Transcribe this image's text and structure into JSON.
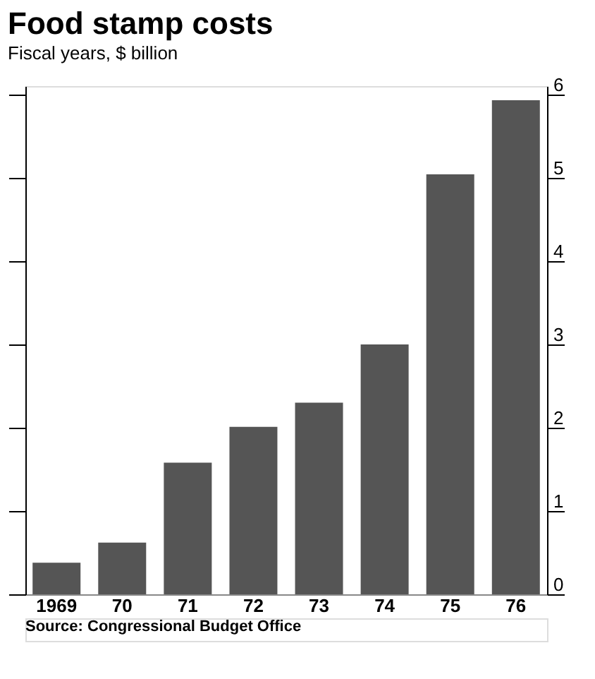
{
  "chart_data": {
    "type": "bar",
    "title": "Food stamp costs",
    "subtitle": "Fiscal years, $ billion",
    "categories": [
      "1969",
      "70",
      "71",
      "72",
      "73",
      "74",
      "75",
      "76"
    ],
    "values": [
      0.38,
      0.62,
      1.58,
      2.01,
      2.3,
      3.0,
      5.04,
      5.93
    ],
    "color": "#555555",
    "ylim": [
      0,
      6.1
    ],
    "yticks": [
      0,
      1,
      2,
      3,
      4,
      5,
      6
    ],
    "grid": false,
    "annotations": [
      "Source: Congressional Budget Office"
    ]
  }
}
